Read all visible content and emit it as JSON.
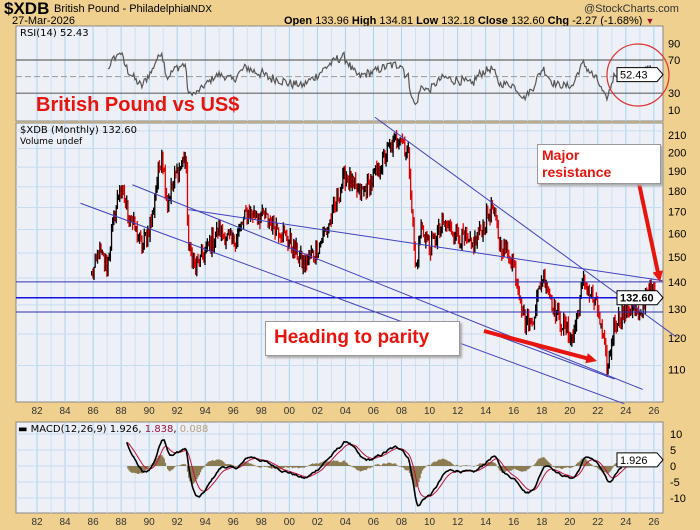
{
  "header": {
    "symbol": "$XDB",
    "name": "British Pound - Philadelphia",
    "exchange": "INDX",
    "date": "27-Mar-2026",
    "copyright": "@StockCharts.com",
    "open_label": "Open",
    "open": "133.96",
    "high_label": "High",
    "high": "134.81",
    "low_label": "Low",
    "low": "132.18",
    "close_label": "Close",
    "close": "132.60",
    "chg_label": "Chg",
    "chg": "-2.27 (-1.68%)"
  },
  "rsi": {
    "label": "RSI(14) 52.43",
    "value_tag": "52.43",
    "value": 52.43,
    "ticks": [
      90,
      70,
      30,
      10
    ],
    "levels": [
      70,
      30
    ]
  },
  "price": {
    "label": "$XDB (Monthly) 132.60",
    "volume_label": "Volume undef",
    "value_tag": "132.60",
    "ticks": [
      210,
      200,
      190,
      180,
      170,
      160,
      150,
      140,
      130,
      120,
      110
    ],
    "scale": "log"
  },
  "macd": {
    "label": "MACD(12,26,9)",
    "macd": "1.926",
    "signal": "1.838",
    "hist": "0.088",
    "value_tag": "1.926",
    "ticks": [
      10,
      5,
      0,
      -5,
      -10
    ]
  },
  "annotations": {
    "title": "British Pound vs US$",
    "resistance": "Major resistance",
    "parity": "Heading to parity"
  },
  "colors": {
    "up": "#000000",
    "down": "#e00000",
    "trendline": "#4040c0",
    "annotation": "#e8140e",
    "macd": "#000000",
    "signal": "#c0103c",
    "hist": "#8b7a50"
  },
  "chart_data": {
    "type": "ohlc",
    "x_axis_labels": [
      "82",
      "84",
      "86",
      "88",
      "90",
      "92",
      "94",
      "96",
      "98",
      "00",
      "02",
      "04",
      "06",
      "08",
      "10",
      "12",
      "14",
      "16",
      "18",
      "20",
      "22",
      "24",
      "26"
    ],
    "xlim": [
      1981.8,
      2026.6
    ],
    "ylim": [
      98,
      218
    ],
    "key_closes": [
      [
        1985.9,
        140
      ],
      [
        1986.4,
        150
      ],
      [
        1987.0,
        145
      ],
      [
        1987.9,
        180
      ],
      [
        1988.5,
        168
      ],
      [
        1989.5,
        152
      ],
      [
        1990.2,
        165
      ],
      [
        1990.9,
        198
      ],
      [
        1991.3,
        172
      ],
      [
        1991.9,
        186
      ],
      [
        1992.6,
        196
      ],
      [
        1992.8,
        152
      ],
      [
        1993.3,
        144
      ],
      [
        1994.0,
        150
      ],
      [
        1995.0,
        160
      ],
      [
        1996.0,
        154
      ],
      [
        1997.0,
        168
      ],
      [
        1998.0,
        166
      ],
      [
        1999.0,
        162
      ],
      [
        2000.0,
        155
      ],
      [
        2001.0,
        145
      ],
      [
        2002.0,
        152
      ],
      [
        2003.0,
        165
      ],
      [
        2004.0,
        186
      ],
      [
        2005.0,
        176
      ],
      [
        2006.0,
        184
      ],
      [
        2007.0,
        198
      ],
      [
        2007.9,
        208
      ],
      [
        2008.5,
        196
      ],
      [
        2009.0,
        142
      ],
      [
        2009.4,
        162
      ],
      [
        2010.0,
        152
      ],
      [
        2011.0,
        162
      ],
      [
        2012.0,
        158
      ],
      [
        2013.0,
        152
      ],
      [
        2014.5,
        170
      ],
      [
        2015.0,
        154
      ],
      [
        2016.0,
        146
      ],
      [
        2016.8,
        124
      ],
      [
        2017.3,
        124
      ],
      [
        2018.1,
        142
      ],
      [
        2019.0,
        127
      ],
      [
        2020.2,
        118
      ],
      [
        2021.0,
        139
      ],
      [
        2022.0,
        128
      ],
      [
        2022.7,
        108
      ],
      [
        2023.2,
        124
      ],
      [
        2024.0,
        128
      ],
      [
        2024.6,
        129
      ],
      [
        2025.0,
        124
      ],
      [
        2025.5,
        136
      ],
      [
        2026.2,
        132.6
      ]
    ],
    "horizontal_lines": [
      138.5,
      132.6,
      127.5
    ],
    "trendlines": [
      [
        [
          1985.1,
          172
        ],
        [
          2023.9,
          99
        ]
      ],
      [
        [
          1988.8,
          181
        ],
        [
          2025.2,
          103
        ]
      ],
      [
        [
          1992.8,
          169
        ],
        [
          2026.6,
          139
        ]
      ],
      [
        [
          2006.1,
          218
        ],
        [
          2027.6,
          119
        ]
      ],
      [
        [
          2013.9,
          121
        ],
        [
          2023.2,
          106
        ]
      ]
    ]
  }
}
